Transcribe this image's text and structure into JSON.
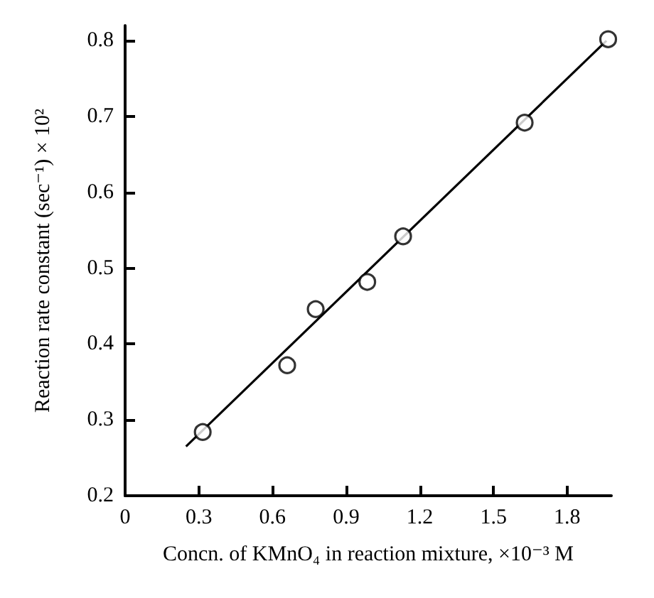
{
  "chart_data": {
    "type": "scatter",
    "xlabel": "Concn. of KMnO₄ in reaction mixture, ×10⁻³ M",
    "ylabel": "Reaction rate constant (sec⁻¹) × 10²",
    "xlim": [
      0,
      1.98
    ],
    "ylim": [
      0.2,
      0.82
    ],
    "xticks": [
      0,
      0.3,
      0.6,
      0.9,
      1.2,
      1.5,
      1.8
    ],
    "yticks": [
      0.2,
      0.3,
      0.4,
      0.5,
      0.6,
      0.7,
      0.8
    ],
    "grid": false,
    "marker": "circle",
    "series": [
      {
        "color": "#000000",
        "x": [
          0.316,
          0.66,
          0.776,
          0.986,
          1.132,
          1.627,
          1.967
        ],
        "values": [
          0.284,
          0.372,
          0.446,
          0.482,
          0.542,
          0.692,
          0.802
        ]
      },
      {
        "type": "line",
        "color": "#000000",
        "marker": "none",
        "line_style": "solid",
        "x": [
          0.248,
          1.96
        ],
        "values": [
          0.265,
          0.8
        ]
      }
    ]
  }
}
